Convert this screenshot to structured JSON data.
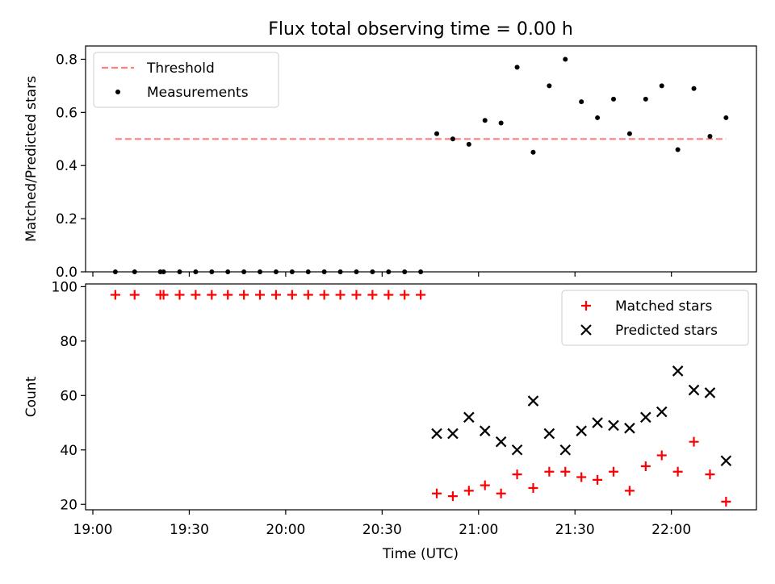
{
  "chart_data": {
    "type": "scatter",
    "title": "Flux total observing time = 0.00 h",
    "xlabel": "Time (UTC)",
    "x_ticks": [
      "19:00",
      "19:30",
      "20:00",
      "20:30",
      "21:00",
      "21:30",
      "22:00"
    ],
    "times": [
      "19:07",
      "19:13",
      "19:21",
      "19:22",
      "19:27",
      "19:32",
      "19:37",
      "19:42",
      "19:47",
      "19:52",
      "19:57",
      "20:02",
      "20:07",
      "20:12",
      "20:17",
      "20:22",
      "20:27",
      "20:32",
      "20:37",
      "20:42",
      "20:47",
      "20:52",
      "20:57",
      "21:02",
      "21:07",
      "21:12",
      "21:17",
      "21:22",
      "21:27",
      "21:32",
      "21:37",
      "21:42",
      "21:47",
      "21:52",
      "21:57",
      "22:02",
      "22:07",
      "22:12",
      "22:17"
    ],
    "panels": [
      {
        "ylabel": "Matched/Predicted stars",
        "ylim": [
          0,
          0.85
        ],
        "y_ticks": [
          "0.0",
          "0.2",
          "0.4",
          "0.6",
          "0.8"
        ],
        "legend_position": "top-left",
        "threshold": {
          "name": "Threshold",
          "value": 0.5,
          "x_start": "19:07",
          "x_end": "22:17",
          "color": "#ff7f7f"
        },
        "series": [
          {
            "name": "Measurements",
            "marker": "dot",
            "color": "#000000",
            "values": [
              0,
              0,
              0,
              0,
              0,
              0,
              0,
              0,
              0,
              0,
              0,
              0,
              0,
              0,
              0,
              0,
              0,
              0,
              0,
              0,
              0.52,
              0.5,
              0.48,
              0.57,
              0.56,
              0.77,
              0.45,
              0.7,
              0.8,
              0.64,
              0.58,
              0.65,
              0.52,
              0.65,
              0.7,
              0.46,
              0.69,
              0.51,
              0.58
            ]
          }
        ]
      },
      {
        "ylabel": "Count",
        "ylim": [
          18,
          101
        ],
        "y_ticks": [
          "20",
          "40",
          "60",
          "80",
          "100"
        ],
        "legend_position": "top-right",
        "series": [
          {
            "name": "Matched stars",
            "marker": "plus",
            "color": "#ff0000",
            "values": [
              97,
              97,
              97,
              97,
              97,
              97,
              97,
              97,
              97,
              97,
              97,
              97,
              97,
              97,
              97,
              97,
              97,
              97,
              97,
              97,
              24,
              23,
              25,
              27,
              24,
              31,
              26,
              32,
              32,
              30,
              29,
              32,
              25,
              34,
              38,
              32,
              43,
              31,
              21
            ]
          },
          {
            "name": "Predicted stars",
            "marker": "x",
            "color": "#000000",
            "values": [
              null,
              null,
              null,
              null,
              null,
              null,
              null,
              null,
              null,
              null,
              null,
              null,
              null,
              null,
              null,
              null,
              null,
              null,
              null,
              null,
              46,
              46,
              52,
              47,
              43,
              40,
              58,
              46,
              40,
              47,
              50,
              49,
              48,
              52,
              54,
              69,
              62,
              61,
              36
            ]
          }
        ]
      }
    ]
  }
}
